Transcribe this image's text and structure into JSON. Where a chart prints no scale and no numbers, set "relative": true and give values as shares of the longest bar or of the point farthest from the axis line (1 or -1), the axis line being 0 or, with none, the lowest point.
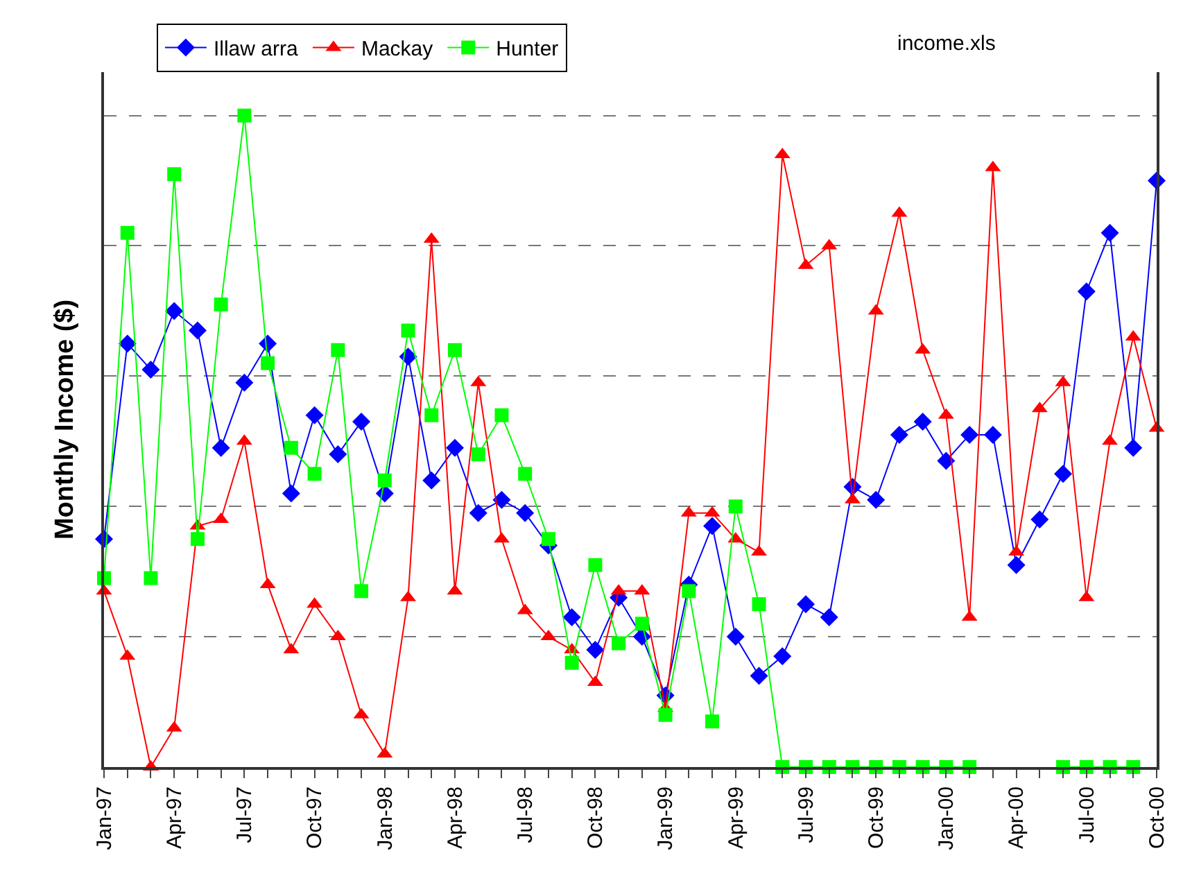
{
  "chart_data": {
    "type": "line",
    "relative": true,
    "ylabel": "Monthly Income ($)",
    "annotations": [
      "income.xls"
    ],
    "grid": "y",
    "legend": "top",
    "line_style": "solid",
    "categories": [
      "Jan-97",
      null,
      null,
      "Apr-97",
      null,
      null,
      "Jul-97",
      null,
      null,
      "Oct-97",
      null,
      null,
      "Jan-98",
      null,
      null,
      "Apr-98",
      null,
      null,
      "Jul-98",
      null,
      null,
      "Oct-98",
      null,
      null,
      "Jan-99",
      null,
      null,
      "Apr-99",
      null,
      null,
      "Jul-99",
      null,
      null,
      "Oct-99",
      null,
      null,
      "Jan-00",
      null,
      null,
      "Apr-00",
      null,
      null,
      "Jul-00",
      null,
      null,
      "Oct-00"
    ],
    "series": [
      {
        "name": "Illaw arra",
        "color": "#0000ff",
        "marker": "diamond",
        "values": [
          0.35,
          0.65,
          0.61,
          0.7,
          0.67,
          0.49,
          0.59,
          0.65,
          0.42,
          0.54,
          0.48,
          0.53,
          0.42,
          0.63,
          0.44,
          0.49,
          0.39,
          0.41,
          0.39,
          0.34,
          0.23,
          0.18,
          0.26,
          0.2,
          0.11,
          0.28,
          0.37,
          0.2,
          0.14,
          0.17,
          0.25,
          0.23,
          0.43,
          0.41,
          0.51,
          0.53,
          0.47,
          0.51,
          0.51,
          0.31,
          0.38,
          0.45,
          0.73,
          0.82,
          0.49,
          0.9
        ]
      },
      {
        "name": "Mackay",
        "color": "#ff0000",
        "marker": "triangle",
        "values": [
          0.27,
          0.17,
          0.0,
          0.06,
          0.37,
          0.38,
          0.5,
          0.28,
          0.18,
          0.25,
          0.2,
          0.08,
          0.02,
          0.26,
          0.81,
          0.27,
          0.59,
          0.35,
          0.24,
          0.2,
          0.18,
          0.13,
          0.27,
          0.27,
          0.09,
          0.39,
          0.39,
          0.35,
          0.33,
          0.94,
          0.77,
          0.8,
          0.41,
          0.7,
          0.85,
          0.64,
          0.54,
          0.23,
          0.92,
          0.33,
          0.55,
          0.59,
          0.26,
          0.5,
          0.66,
          0.52
        ]
      },
      {
        "name": "Hunter",
        "color": "#00ff00",
        "marker": "square",
        "values": [
          0.29,
          0.82,
          0.29,
          0.91,
          0.35,
          0.71,
          1.0,
          0.62,
          0.49,
          0.45,
          0.64,
          0.27,
          0.44,
          0.67,
          0.54,
          0.64,
          0.48,
          0.54,
          0.45,
          0.35,
          0.16,
          0.31,
          0.19,
          0.22,
          0.08,
          0.27,
          0.07,
          0.4,
          0.25,
          0.0,
          0.0,
          0.0,
          0.0,
          0.0,
          0.0,
          0.0,
          0.0,
          0.0,
          null,
          null,
          null,
          0.0,
          0.0,
          0.0,
          0.0,
          null
        ]
      }
    ]
  }
}
